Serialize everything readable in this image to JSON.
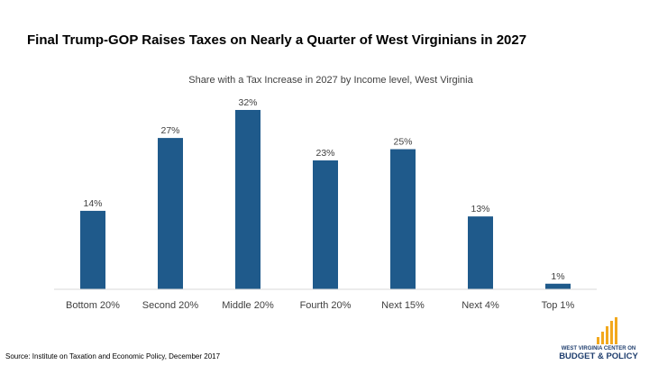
{
  "title": "Final Trump-GOP Raises Taxes on Nearly a Quarter of West Virginians in 2027",
  "source": "Source: Institute on Taxation and Economic Policy, December 2017",
  "logo": {
    "line1": "WEST VIRGINIA CENTER ON",
    "line2": "BUDGET & POLICY",
    "colors": [
      "#f2a81d",
      "#1f3e6e"
    ]
  },
  "colors": {
    "bar": "#1f5a8b",
    "axis": "#d9d9d9"
  },
  "chart_data": {
    "type": "bar",
    "title": "Share with a Tax Increase in 2027 by Income level, West Virginia",
    "categories": [
      "Bottom 20%",
      "Second 20%",
      "Middle 20%",
      "Fourth 20%",
      "Next 15%",
      "Next 4%",
      "Top 1%"
    ],
    "values": [
      14,
      27,
      32,
      23,
      25,
      13,
      1
    ],
    "labels": [
      "14%",
      "27%",
      "32%",
      "23%",
      "25%",
      "13%",
      "1%"
    ],
    "ylim": [
      0,
      32
    ],
    "grid": false,
    "legend": "none"
  }
}
